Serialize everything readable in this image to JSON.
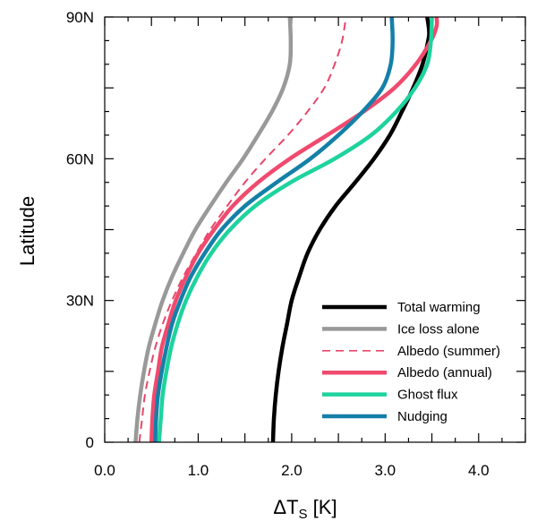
{
  "chart_data": {
    "type": "line",
    "xlabel_main": "ΔT",
    "xlabel_sub": "S",
    "xlabel_unit": " [K]",
    "ylabel": "Latitude",
    "xlim": [
      0,
      4.5
    ],
    "ylim": [
      0,
      90
    ],
    "x_ticks": [
      {
        "value": 0.0,
        "label": "0.0"
      },
      {
        "value": 1.0,
        "label": "1.0"
      },
      {
        "value": 2.0,
        "label": "2.0"
      },
      {
        "value": 3.0,
        "label": "3.0"
      },
      {
        "value": 4.0,
        "label": "4.0"
      }
    ],
    "y_ticks": [
      {
        "value": 0,
        "label": "0"
      },
      {
        "value": 30,
        "label": "30N"
      },
      {
        "value": 60,
        "label": "60N"
      },
      {
        "value": 90,
        "label": "90N"
      }
    ],
    "legend_position": "bottom-right",
    "series": [
      {
        "name": "Total warming",
        "color": "#000000",
        "dash": false,
        "points": [
          [
            1.8,
            0
          ],
          [
            1.81,
            5
          ],
          [
            1.83,
            10
          ],
          [
            1.86,
            15
          ],
          [
            1.9,
            20
          ],
          [
            1.95,
            25
          ],
          [
            2.0,
            30
          ],
          [
            2.08,
            35
          ],
          [
            2.17,
            40
          ],
          [
            2.3,
            45
          ],
          [
            2.47,
            50
          ],
          [
            2.68,
            55
          ],
          [
            2.88,
            60
          ],
          [
            3.05,
            65
          ],
          [
            3.18,
            70
          ],
          [
            3.3,
            75
          ],
          [
            3.4,
            80
          ],
          [
            3.46,
            85
          ],
          [
            3.47,
            87
          ],
          [
            3.45,
            90
          ]
        ]
      },
      {
        "name": "Ice loss alone",
        "color": "#999999",
        "dash": false,
        "points": [
          [
            0.33,
            0
          ],
          [
            0.35,
            5
          ],
          [
            0.38,
            10
          ],
          [
            0.42,
            15
          ],
          [
            0.47,
            20
          ],
          [
            0.54,
            25
          ],
          [
            0.62,
            30
          ],
          [
            0.72,
            35
          ],
          [
            0.84,
            40
          ],
          [
            0.97,
            45
          ],
          [
            1.13,
            50
          ],
          [
            1.3,
            55
          ],
          [
            1.48,
            60
          ],
          [
            1.64,
            65
          ],
          [
            1.79,
            70
          ],
          [
            1.91,
            75
          ],
          [
            1.98,
            80
          ],
          [
            1.99,
            85
          ],
          [
            1.98,
            90
          ]
        ]
      },
      {
        "name": "Albedo (summer)",
        "color": "#e8476a",
        "dash": true,
        "points": [
          [
            0.37,
            0
          ],
          [
            0.4,
            5
          ],
          [
            0.43,
            10
          ],
          [
            0.48,
            15
          ],
          [
            0.54,
            20
          ],
          [
            0.62,
            25
          ],
          [
            0.72,
            30
          ],
          [
            0.84,
            35
          ],
          [
            0.98,
            40
          ],
          [
            1.13,
            45
          ],
          [
            1.31,
            50
          ],
          [
            1.5,
            55
          ],
          [
            1.72,
            60
          ],
          [
            1.96,
            65
          ],
          [
            2.17,
            70
          ],
          [
            2.35,
            75
          ],
          [
            2.46,
            80
          ],
          [
            2.54,
            85
          ],
          [
            2.58,
            90
          ]
        ]
      },
      {
        "name": "Albedo (annual)",
        "color": "#f04a6e",
        "dash": false,
        "points": [
          [
            0.5,
            0
          ],
          [
            0.51,
            5
          ],
          [
            0.53,
            10
          ],
          [
            0.57,
            15
          ],
          [
            0.61,
            20
          ],
          [
            0.68,
            25
          ],
          [
            0.76,
            30
          ],
          [
            0.87,
            35
          ],
          [
            1.0,
            40
          ],
          [
            1.17,
            45
          ],
          [
            1.37,
            50
          ],
          [
            1.64,
            55
          ],
          [
            1.98,
            60
          ],
          [
            2.38,
            65
          ],
          [
            2.77,
            70
          ],
          [
            3.1,
            75
          ],
          [
            3.33,
            80
          ],
          [
            3.49,
            85
          ],
          [
            3.55,
            88
          ],
          [
            3.55,
            90
          ]
        ]
      },
      {
        "name": "Ghost flux",
        "color": "#1ed39e",
        "dash": false,
        "points": [
          [
            0.58,
            0
          ],
          [
            0.6,
            5
          ],
          [
            0.62,
            10
          ],
          [
            0.66,
            15
          ],
          [
            0.71,
            20
          ],
          [
            0.78,
            25
          ],
          [
            0.87,
            30
          ],
          [
            0.99,
            35
          ],
          [
            1.14,
            40
          ],
          [
            1.34,
            45
          ],
          [
            1.61,
            50
          ],
          [
            1.99,
            55
          ],
          [
            2.46,
            60
          ],
          [
            2.85,
            65
          ],
          [
            3.12,
            70
          ],
          [
            3.32,
            75
          ],
          [
            3.45,
            80
          ],
          [
            3.49,
            85
          ],
          [
            3.5,
            90
          ]
        ]
      },
      {
        "name": "Nudging",
        "color": "#1480a8",
        "dash": false,
        "points": [
          [
            0.54,
            0
          ],
          [
            0.55,
            5
          ],
          [
            0.57,
            10
          ],
          [
            0.61,
            15
          ],
          [
            0.66,
            20
          ],
          [
            0.72,
            25
          ],
          [
            0.81,
            30
          ],
          [
            0.92,
            35
          ],
          [
            1.07,
            40
          ],
          [
            1.25,
            45
          ],
          [
            1.5,
            50
          ],
          [
            1.84,
            55
          ],
          [
            2.2,
            60
          ],
          [
            2.5,
            65
          ],
          [
            2.76,
            70
          ],
          [
            2.97,
            75
          ],
          [
            3.06,
            80
          ],
          [
            3.08,
            85
          ],
          [
            3.07,
            90
          ]
        ]
      }
    ]
  }
}
